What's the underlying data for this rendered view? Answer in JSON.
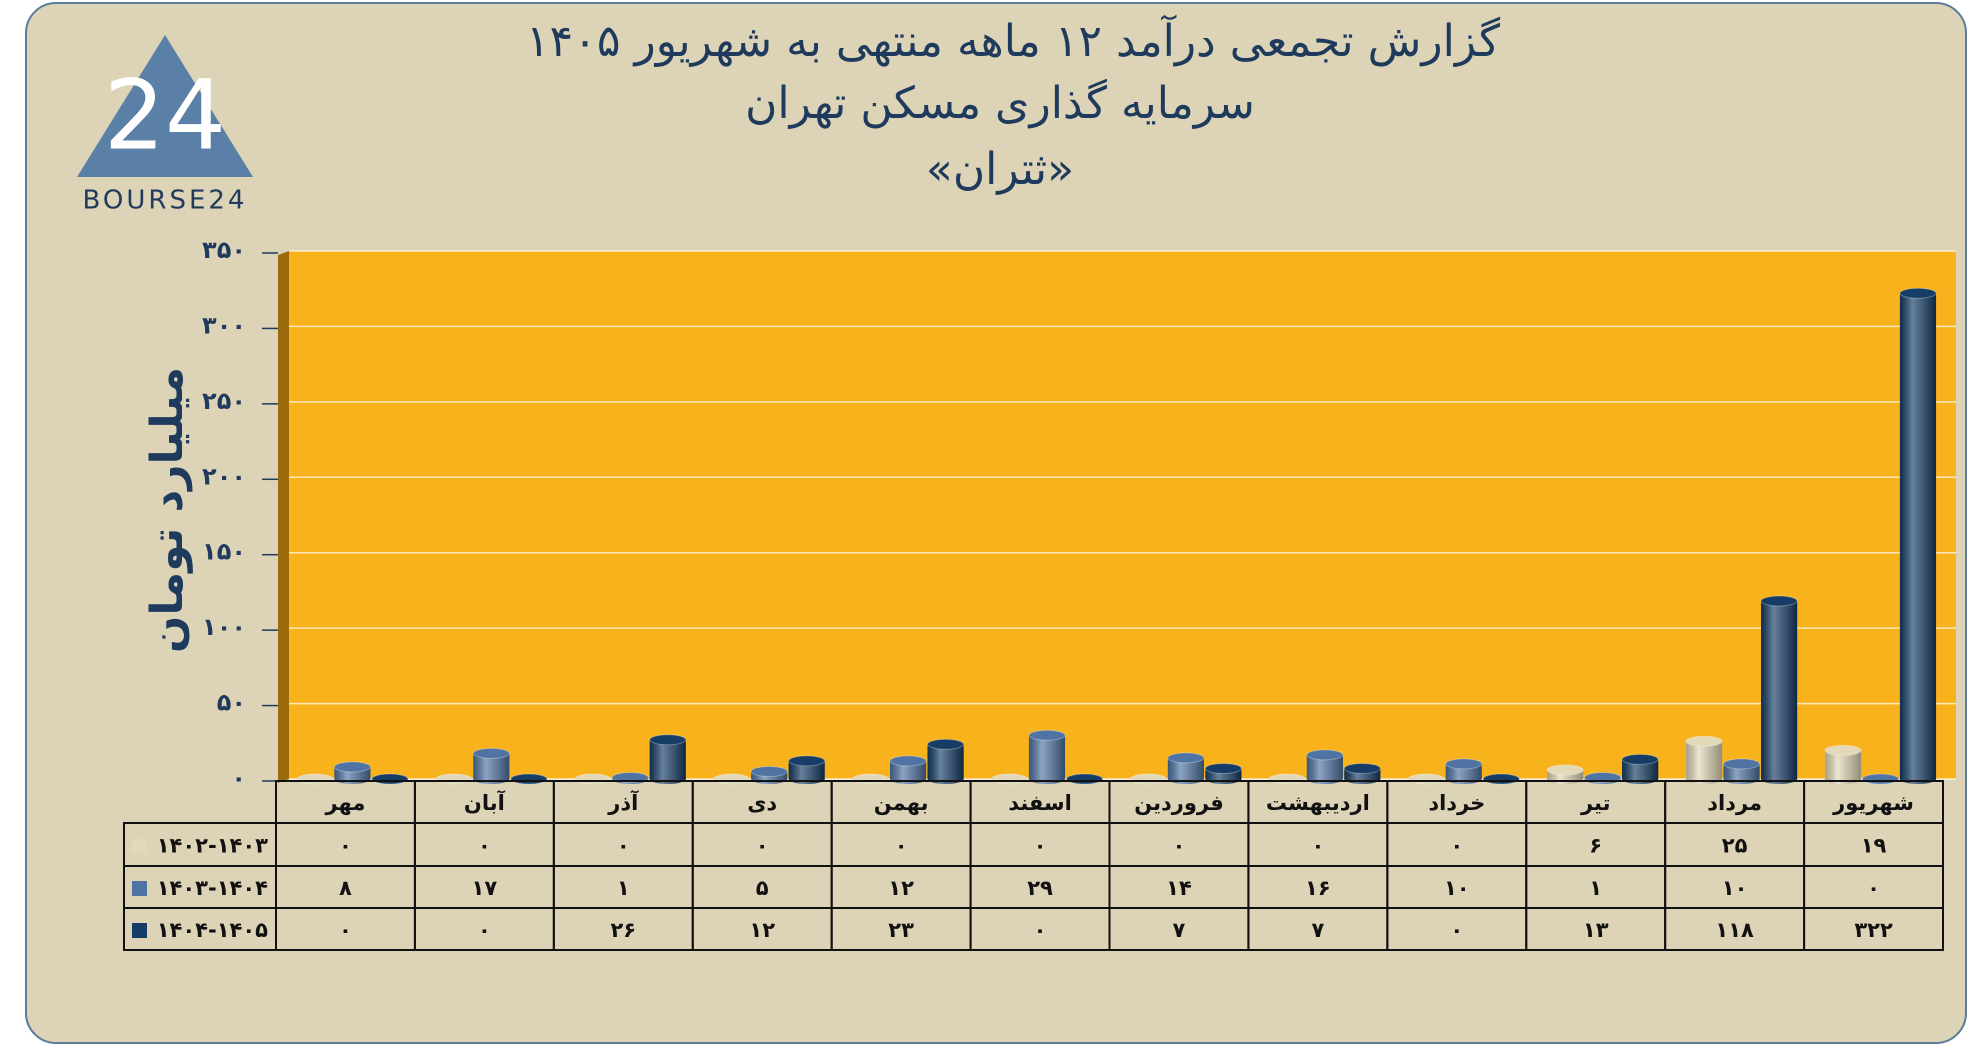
{
  "logo": {
    "mark": "24",
    "text": "BOURSE24"
  },
  "chart_data": {
    "type": "bar",
    "title": "گزارش تجمعی درآمد ۱۲ ماهه منتهی به شهریور ۱۴۰۵",
    "subtitle": "سرمایه گذاری مسکن تهران",
    "subtitle2": "«ثتران»",
    "y_label": "میلیارد تومان",
    "categories": [
      "مهر",
      "آبان",
      "آذر",
      "دی",
      "بهمن",
      "اسفند",
      "فروردین",
      "اردیبهشت",
      "خرداد",
      "تیر",
      "مرداد",
      "شهریور"
    ],
    "series": [
      {
        "name": "۱۴۰۲-۱۴۰۳",
        "color": "#e3d8b8",
        "values": [
          0,
          0,
          0,
          0,
          0,
          0,
          0,
          0,
          0,
          6,
          25,
          19
        ],
        "value_labels": [
          "۰",
          "۰",
          "۰",
          "۰",
          "۰",
          "۰",
          "۰",
          "۰",
          "۰",
          "۶",
          "۲۵",
          "۱۹"
        ]
      },
      {
        "name": "۱۴۰۳-۱۴۰۴",
        "color": "#4f74a3",
        "values": [
          8,
          17,
          1,
          5,
          12,
          29,
          14,
          16,
          10,
          1,
          10,
          0
        ],
        "value_labels": [
          "۸",
          "۱۷",
          "۱",
          "۵",
          "۱۲",
          "۲۹",
          "۱۴",
          "۱۶",
          "۱۰",
          "۱",
          "۱۰",
          "۰"
        ]
      },
      {
        "name": "۱۴۰۴-۱۴۰۵",
        "color": "#153d66",
        "values": [
          0,
          0,
          26,
          12,
          23,
          0,
          7,
          7,
          0,
          13,
          118,
          322
        ],
        "value_labels": [
          "۰",
          "۰",
          "۲۶",
          "۱۲",
          "۲۳",
          "۰",
          "۷",
          "۷",
          "۰",
          "۱۳",
          "۱۱۸",
          "۳۲۲"
        ]
      }
    ],
    "ylim": [
      0,
      350
    ],
    "yticks": [
      {
        "value": 0,
        "label": "۰"
      },
      {
        "value": 50,
        "label": "۵۰"
      },
      {
        "value": 100,
        "label": "۱۰۰"
      },
      {
        "value": 150,
        "label": "۱۵۰"
      },
      {
        "value": 200,
        "label": "۲۰۰"
      },
      {
        "value": 250,
        "label": "۲۵۰"
      },
      {
        "value": 300,
        "label": "۳۰۰"
      },
      {
        "value": 350,
        "label": "۳۵۰"
      }
    ],
    "grid": true,
    "background": "#f7b21c"
  }
}
